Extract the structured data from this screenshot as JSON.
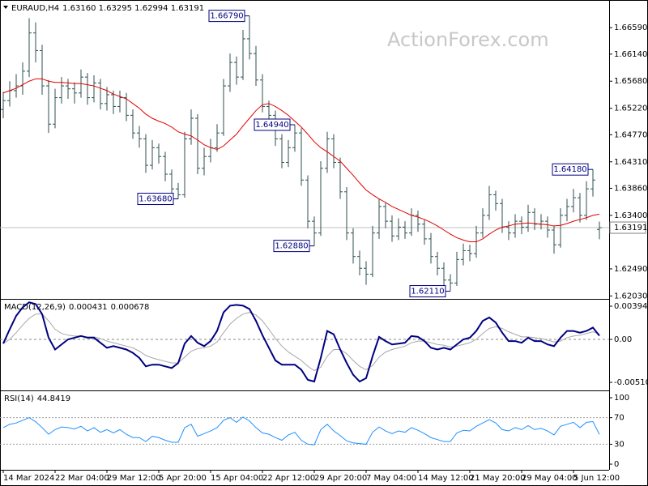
{
  "chart_data": [
    {
      "type": "ohlc",
      "title": "EURAUD,H4",
      "ohlc_label": "1.63160 1.63295 1.62994 1.63191",
      "watermark": "ActionForex.com",
      "color": "#2f4f4f",
      "current_label": "1.63191",
      "categories": [
        "14 Mar 2024",
        null,
        null,
        null,
        null,
        null,
        null,
        null,
        "22 Mar 04:00",
        null,
        null,
        null,
        null,
        null,
        null,
        null,
        "29 Mar 12:00",
        null,
        null,
        null,
        null,
        null,
        null,
        null,
        "5 Apr 20:00",
        null,
        null,
        null,
        null,
        null,
        null,
        null,
        "15 Apr 04:00",
        null,
        null,
        null,
        null,
        null,
        null,
        null,
        "22 Apr 12:00",
        null,
        null,
        null,
        null,
        null,
        null,
        null,
        "29 Apr 20:00",
        null,
        null,
        null,
        null,
        null,
        null,
        null,
        "7 May 04:00",
        null,
        null,
        null,
        null,
        null,
        null,
        null,
        "14 May 12:00",
        null,
        null,
        null,
        null,
        null,
        null,
        null,
        "21 May 20:00",
        null,
        null,
        null,
        null,
        null,
        null,
        null,
        "29 May 04:00",
        null,
        null,
        null,
        null,
        null,
        null,
        null,
        "5 Jun 12:00",
        null,
        null,
        null,
        null
      ],
      "open": [
        1.652,
        1.6535,
        1.6552,
        1.656,
        1.6585,
        1.665,
        1.662,
        1.656,
        1.6495,
        1.654,
        1.656,
        1.6555,
        1.6548,
        1.6575,
        1.654,
        1.6565,
        1.653,
        1.6545,
        1.6525,
        1.654,
        1.651,
        1.648,
        1.647,
        1.6425,
        1.6455,
        1.644,
        1.641,
        1.6385,
        1.6375,
        1.647,
        1.6505,
        1.642,
        1.644,
        1.6455,
        1.648,
        1.656,
        1.66,
        1.6575,
        1.664,
        1.6615,
        1.657,
        1.6525,
        1.651,
        1.647,
        1.643,
        1.6455,
        1.648,
        1.64,
        1.633,
        1.631,
        1.642,
        1.647,
        1.643,
        1.638,
        1.631,
        1.627,
        1.625,
        1.624,
        1.631,
        1.6355,
        1.633,
        1.6305,
        1.632,
        1.631,
        1.634,
        1.6325,
        1.63,
        1.627,
        1.625,
        1.623,
        1.6225,
        1.6265,
        1.628,
        1.6275,
        1.631,
        1.634,
        1.6375,
        1.636,
        1.632,
        1.631,
        1.633,
        1.632,
        1.6345,
        1.6325,
        1.633,
        1.6315,
        1.629,
        1.634,
        1.6355,
        1.637,
        1.634,
        1.6385,
        1.6316
      ],
      "high": [
        1.655,
        1.6568,
        1.658,
        1.66,
        1.6675,
        1.6668,
        1.663,
        1.657,
        1.6555,
        1.6575,
        1.6572,
        1.6566,
        1.6588,
        1.6582,
        1.6578,
        1.6572,
        1.6558,
        1.6552,
        1.6552,
        1.6548,
        1.652,
        1.6492,
        1.6478,
        1.6468,
        1.6462,
        1.6448,
        1.6418,
        1.6395,
        1.6482,
        1.652,
        1.6512,
        1.6455,
        1.647,
        1.6495,
        1.6572,
        1.6615,
        1.661,
        1.6655,
        1.6679,
        1.6628,
        1.658,
        1.6535,
        1.6518,
        1.6478,
        1.6468,
        1.6494,
        1.6488,
        1.6408,
        1.6338,
        1.6432,
        1.6482,
        1.6478,
        1.6438,
        1.6388,
        1.6318,
        1.628,
        1.6262,
        1.6322,
        1.6368,
        1.6362,
        1.634,
        1.6335,
        1.633,
        1.6352,
        1.6348,
        1.6332,
        1.631,
        1.6278,
        1.626,
        1.624,
        1.6278,
        1.6292,
        1.629,
        1.6322,
        1.6352,
        1.639,
        1.6382,
        1.6368,
        1.633,
        1.6342,
        1.6338,
        1.6358,
        1.6352,
        1.6342,
        1.6338,
        1.6322,
        1.6352,
        1.6368,
        1.6385,
        1.6378,
        1.6398,
        1.6418,
        1.63295
      ],
      "low": [
        1.6505,
        1.6525,
        1.654,
        1.6545,
        1.6575,
        1.66,
        1.6545,
        1.648,
        1.6488,
        1.653,
        1.6538,
        1.653,
        1.654,
        1.6528,
        1.6532,
        1.652,
        1.6518,
        1.6512,
        1.6515,
        1.65,
        1.647,
        1.6455,
        1.6412,
        1.6418,
        1.6428,
        1.6398,
        1.6372,
        1.6368,
        1.637,
        1.646,
        1.641,
        1.6408,
        1.643,
        1.6448,
        1.6475,
        1.655,
        1.6562,
        1.657,
        1.6605,
        1.656,
        1.6515,
        1.6498,
        1.6458,
        1.642,
        1.6422,
        1.6448,
        1.639,
        1.6318,
        1.6288,
        1.6305,
        1.6412,
        1.642,
        1.6368,
        1.6298,
        1.6258,
        1.6238,
        1.6222,
        1.6235,
        1.63,
        1.6318,
        1.6295,
        1.6298,
        1.63,
        1.6305,
        1.6312,
        1.629,
        1.6258,
        1.6238,
        1.6218,
        1.6211,
        1.622,
        1.6255,
        1.6262,
        1.6268,
        1.6302,
        1.6332,
        1.6348,
        1.631,
        1.6298,
        1.6302,
        1.6308,
        1.6312,
        1.6315,
        1.6316,
        1.6302,
        1.6275,
        1.6285,
        1.633,
        1.6345,
        1.6328,
        1.6332,
        1.6372,
        1.62994
      ],
      "close": [
        1.6535,
        1.6552,
        1.656,
        1.6585,
        1.665,
        1.662,
        1.656,
        1.6495,
        1.654,
        1.656,
        1.6555,
        1.6548,
        1.6575,
        1.654,
        1.6565,
        1.653,
        1.6545,
        1.6525,
        1.654,
        1.651,
        1.648,
        1.647,
        1.6425,
        1.6455,
        1.644,
        1.641,
        1.6385,
        1.6375,
        1.647,
        1.6505,
        1.642,
        1.644,
        1.6455,
        1.648,
        1.656,
        1.66,
        1.6575,
        1.664,
        1.6615,
        1.657,
        1.6525,
        1.651,
        1.647,
        1.643,
        1.6455,
        1.648,
        1.64,
        1.633,
        1.631,
        1.642,
        1.647,
        1.643,
        1.638,
        1.631,
        1.627,
        1.625,
        1.624,
        1.631,
        1.6355,
        1.633,
        1.6305,
        1.632,
        1.631,
        1.634,
        1.6325,
        1.63,
        1.627,
        1.625,
        1.623,
        1.6225,
        1.6265,
        1.628,
        1.6275,
        1.631,
        1.634,
        1.6375,
        1.636,
        1.632,
        1.631,
        1.633,
        1.632,
        1.6345,
        1.6325,
        1.633,
        1.6315,
        1.629,
        1.634,
        1.6355,
        1.637,
        1.634,
        1.6385,
        1.64,
        1.63191
      ],
      "high_labels": [
        null,
        null,
        null,
        null,
        null,
        null,
        null,
        null,
        null,
        null,
        null,
        null,
        null,
        null,
        null,
        null,
        null,
        null,
        null,
        null,
        null,
        null,
        null,
        null,
        null,
        null,
        null,
        null,
        null,
        null,
        null,
        null,
        null,
        null,
        null,
        null,
        null,
        null,
        "1.66790",
        null,
        null,
        null,
        null,
        null,
        null,
        "1.64940",
        null,
        null,
        null,
        null,
        null,
        null,
        null,
        null,
        null,
        null,
        null,
        null,
        null,
        null,
        null,
        null,
        null,
        null,
        null,
        null,
        null,
        null,
        null,
        null,
        null,
        null,
        null,
        null,
        null,
        null,
        null,
        null,
        null,
        null,
        null,
        null,
        null,
        null,
        null,
        null,
        null,
        null,
        null,
        null,
        null,
        "1.64180",
        null
      ],
      "low_labels": [
        null,
        null,
        null,
        null,
        null,
        null,
        null,
        null,
        null,
        null,
        null,
        null,
        null,
        null,
        null,
        null,
        null,
        null,
        null,
        null,
        null,
        null,
        null,
        null,
        null,
        null,
        null,
        "1.63680",
        null,
        null,
        null,
        null,
        null,
        null,
        null,
        null,
        null,
        null,
        null,
        null,
        null,
        null,
        null,
        null,
        null,
        null,
        null,
        null,
        "1.62880",
        null,
        null,
        null,
        null,
        null,
        null,
        null,
        null,
        null,
        null,
        null,
        null,
        null,
        null,
        null,
        null,
        null,
        null,
        null,
        null,
        "1.62110",
        null,
        null,
        null,
        null,
        null,
        null,
        null,
        null,
        null,
        null,
        null,
        null,
        null,
        null,
        null,
        null,
        null,
        null,
        null,
        null,
        null,
        null,
        null
      ],
      "ma": {
        "color": "#e00000",
        "values": [
          1.6548,
          1.6552,
          1.6556,
          1.6562,
          1.6568,
          1.6572,
          1.6572,
          1.6568,
          1.6566,
          1.6566,
          1.6565,
          1.6564,
          1.6564,
          1.6562,
          1.656,
          1.6556,
          1.6552,
          1.6546,
          1.6542,
          1.6538,
          1.653,
          1.6522,
          1.6512,
          1.6505,
          1.65,
          1.6496,
          1.649,
          1.6482,
          1.6478,
          1.6475,
          1.6468,
          1.646,
          1.6455,
          1.6452,
          1.6458,
          1.6468,
          1.6478,
          1.6492,
          1.6505,
          1.6518,
          1.6528,
          1.653,
          1.6525,
          1.6518,
          1.651,
          1.65,
          1.649,
          1.6478,
          1.6465,
          1.6455,
          1.6448,
          1.644,
          1.6432,
          1.642,
          1.6408,
          1.6395,
          1.6383,
          1.6375,
          1.6368,
          1.6362,
          1.6355,
          1.635,
          1.6345,
          1.634,
          1.6337,
          1.6333,
          1.6328,
          1.6322,
          1.6315,
          1.6308,
          1.6302,
          1.6298,
          1.6295,
          1.6295,
          1.63,
          1.6308,
          1.6315,
          1.632,
          1.6322,
          1.6325,
          1.6326,
          1.6327,
          1.6326,
          1.6325,
          1.6324,
          1.6322,
          1.6323,
          1.6326,
          1.633,
          1.6333,
          1.6336,
          1.634,
          1.6342
        ]
      },
      "ylim": [
        1.6198,
        1.6706
      ],
      "yticks": [
        {
          "value": 1.6659,
          "label": "1.66590"
        },
        {
          "value": 1.6614,
          "label": "1.66140"
        },
        {
          "value": 1.6568,
          "label": "1.65680"
        },
        {
          "value": 1.6522,
          "label": "1.65220"
        },
        {
          "value": 1.6477,
          "label": "1.64770"
        },
        {
          "value": 1.6431,
          "label": "1.64310"
        },
        {
          "value": 1.6386,
          "label": "1.63860"
        },
        {
          "value": 1.634,
          "label": "1.63400"
        },
        {
          "value": 1.6249,
          "label": "1.62490"
        },
        {
          "value": 1.6203,
          "label": "1.62030"
        }
      ]
    },
    {
      "type": "macd",
      "title": "MACD(12,26,9)",
      "zero_line": true,
      "series": [
        {
          "color": "#000080",
          "values": [
            -0.0005,
            0.0012,
            0.0028,
            0.0038,
            0.0044,
            0.0042,
            0.003,
            0.0002,
            -0.0012,
            -0.0006,
            0.0,
            0.0002,
            0.0004,
            0.0002,
            0.0002,
            -0.0004,
            -0.001,
            -0.0008,
            -0.001,
            -0.0012,
            -0.0016,
            -0.0022,
            -0.0032,
            -0.003,
            -0.003,
            -0.0032,
            -0.0034,
            -0.0028,
            -0.0005,
            0.0004,
            -0.0004,
            -0.0008,
            -0.0002,
            0.001,
            0.0032,
            0.004,
            0.0041,
            0.004,
            0.0036,
            0.0022,
            0.0005,
            -0.001,
            -0.0025,
            -0.003,
            -0.003,
            -0.003,
            -0.0036,
            -0.0048,
            -0.005,
            -0.0022,
            0.001,
            0.0006,
            -0.0012,
            -0.0028,
            -0.0042,
            -0.005,
            -0.0046,
            -0.002,
            0.0003,
            -0.0002,
            -0.0006,
            -0.0005,
            -0.0004,
            0.0004,
            0.0003,
            -0.0002,
            -0.001,
            -0.0012,
            -0.001,
            -0.0012,
            -0.0006,
            0.0,
            0.0002,
            0.001,
            0.0022,
            0.0026,
            0.002,
            0.0008,
            -0.0002,
            -0.0002,
            -0.0004,
            0.0002,
            -0.0002,
            -0.0002,
            -0.0006,
            -0.0008,
            0.0002,
            0.001,
            0.001,
            0.0008,
            0.001,
            0.0014,
            0.000431
          ]
        },
        {
          "color": "#a8a8a8",
          "values": [
            -0.0005,
            0.0,
            0.0008,
            0.0017,
            0.0025,
            0.003,
            0.003,
            0.0022,
            0.0012,
            0.0007,
            0.0005,
            0.0004,
            0.0004,
            0.0003,
            0.0003,
            0.0001,
            -0.0002,
            -0.0004,
            -0.0006,
            -0.0008,
            -0.001,
            -0.0014,
            -0.0019,
            -0.0022,
            -0.0024,
            -0.0026,
            -0.0028,
            -0.0028,
            -0.0021,
            -0.0014,
            -0.0011,
            -0.001,
            -0.0008,
            -0.0003,
            0.0008,
            0.0018,
            0.0025,
            0.003,
            0.0032,
            0.0029,
            0.0022,
            0.0012,
            0.0001,
            -0.0008,
            -0.0015,
            -0.002,
            -0.0025,
            -0.0032,
            -0.0037,
            -0.0033,
            -0.002,
            -0.0012,
            -0.0012,
            -0.0017,
            -0.0025,
            -0.0032,
            -0.0036,
            -0.0031,
            -0.0021,
            -0.0015,
            -0.0012,
            -0.001,
            -0.0008,
            -0.0004,
            -0.0002,
            -0.0002,
            -0.0004,
            -0.0006,
            -0.0007,
            -0.0009,
            -0.0008,
            -0.0006,
            -0.0004,
            0.0,
            0.0007,
            0.0013,
            0.0015,
            0.0013,
            0.0009,
            0.0006,
            0.0003,
            0.0003,
            0.0002,
            0.0001,
            -0.0001,
            -0.0003,
            -0.0002,
            0.0002,
            0.0004,
            0.0005,
            0.0007,
            0.0009,
            0.000678
          ]
        }
      ],
      "ylim": [
        -0.00596,
        0.00471
      ],
      "yticks": [
        0.003941,
        {
          "value": 0,
          "label": "0.00"
        },
        -0.005103
      ]
    },
    {
      "type": "rsi",
      "title": "RSI(14)",
      "color": "#1e90ff",
      "values": [
        55,
        60,
        62,
        66,
        70,
        64,
        55,
        45,
        52,
        56,
        55,
        53,
        57,
        50,
        55,
        48,
        52,
        47,
        52,
        45,
        40,
        40,
        34,
        42,
        40,
        36,
        33,
        33,
        55,
        60,
        42,
        46,
        50,
        55,
        66,
        70,
        63,
        71,
        65,
        55,
        47,
        45,
        40,
        36,
        44,
        48,
        36,
        30,
        29,
        52,
        60,
        50,
        43,
        35,
        32,
        31,
        30,
        48,
        56,
        50,
        46,
        50,
        48,
        55,
        51,
        46,
        40,
        37,
        34,
        34,
        47,
        51,
        50,
        57,
        62,
        67,
        62,
        52,
        50,
        55,
        52,
        58,
        52,
        54,
        50,
        44,
        57,
        60,
        63,
        55,
        63,
        64,
        44.8419
      ],
      "ylim": [
        -8.5,
        109.8
      ],
      "yticks": [
        100,
        70,
        30,
        0
      ],
      "levels": [
        70,
        30
      ]
    }
  ]
}
